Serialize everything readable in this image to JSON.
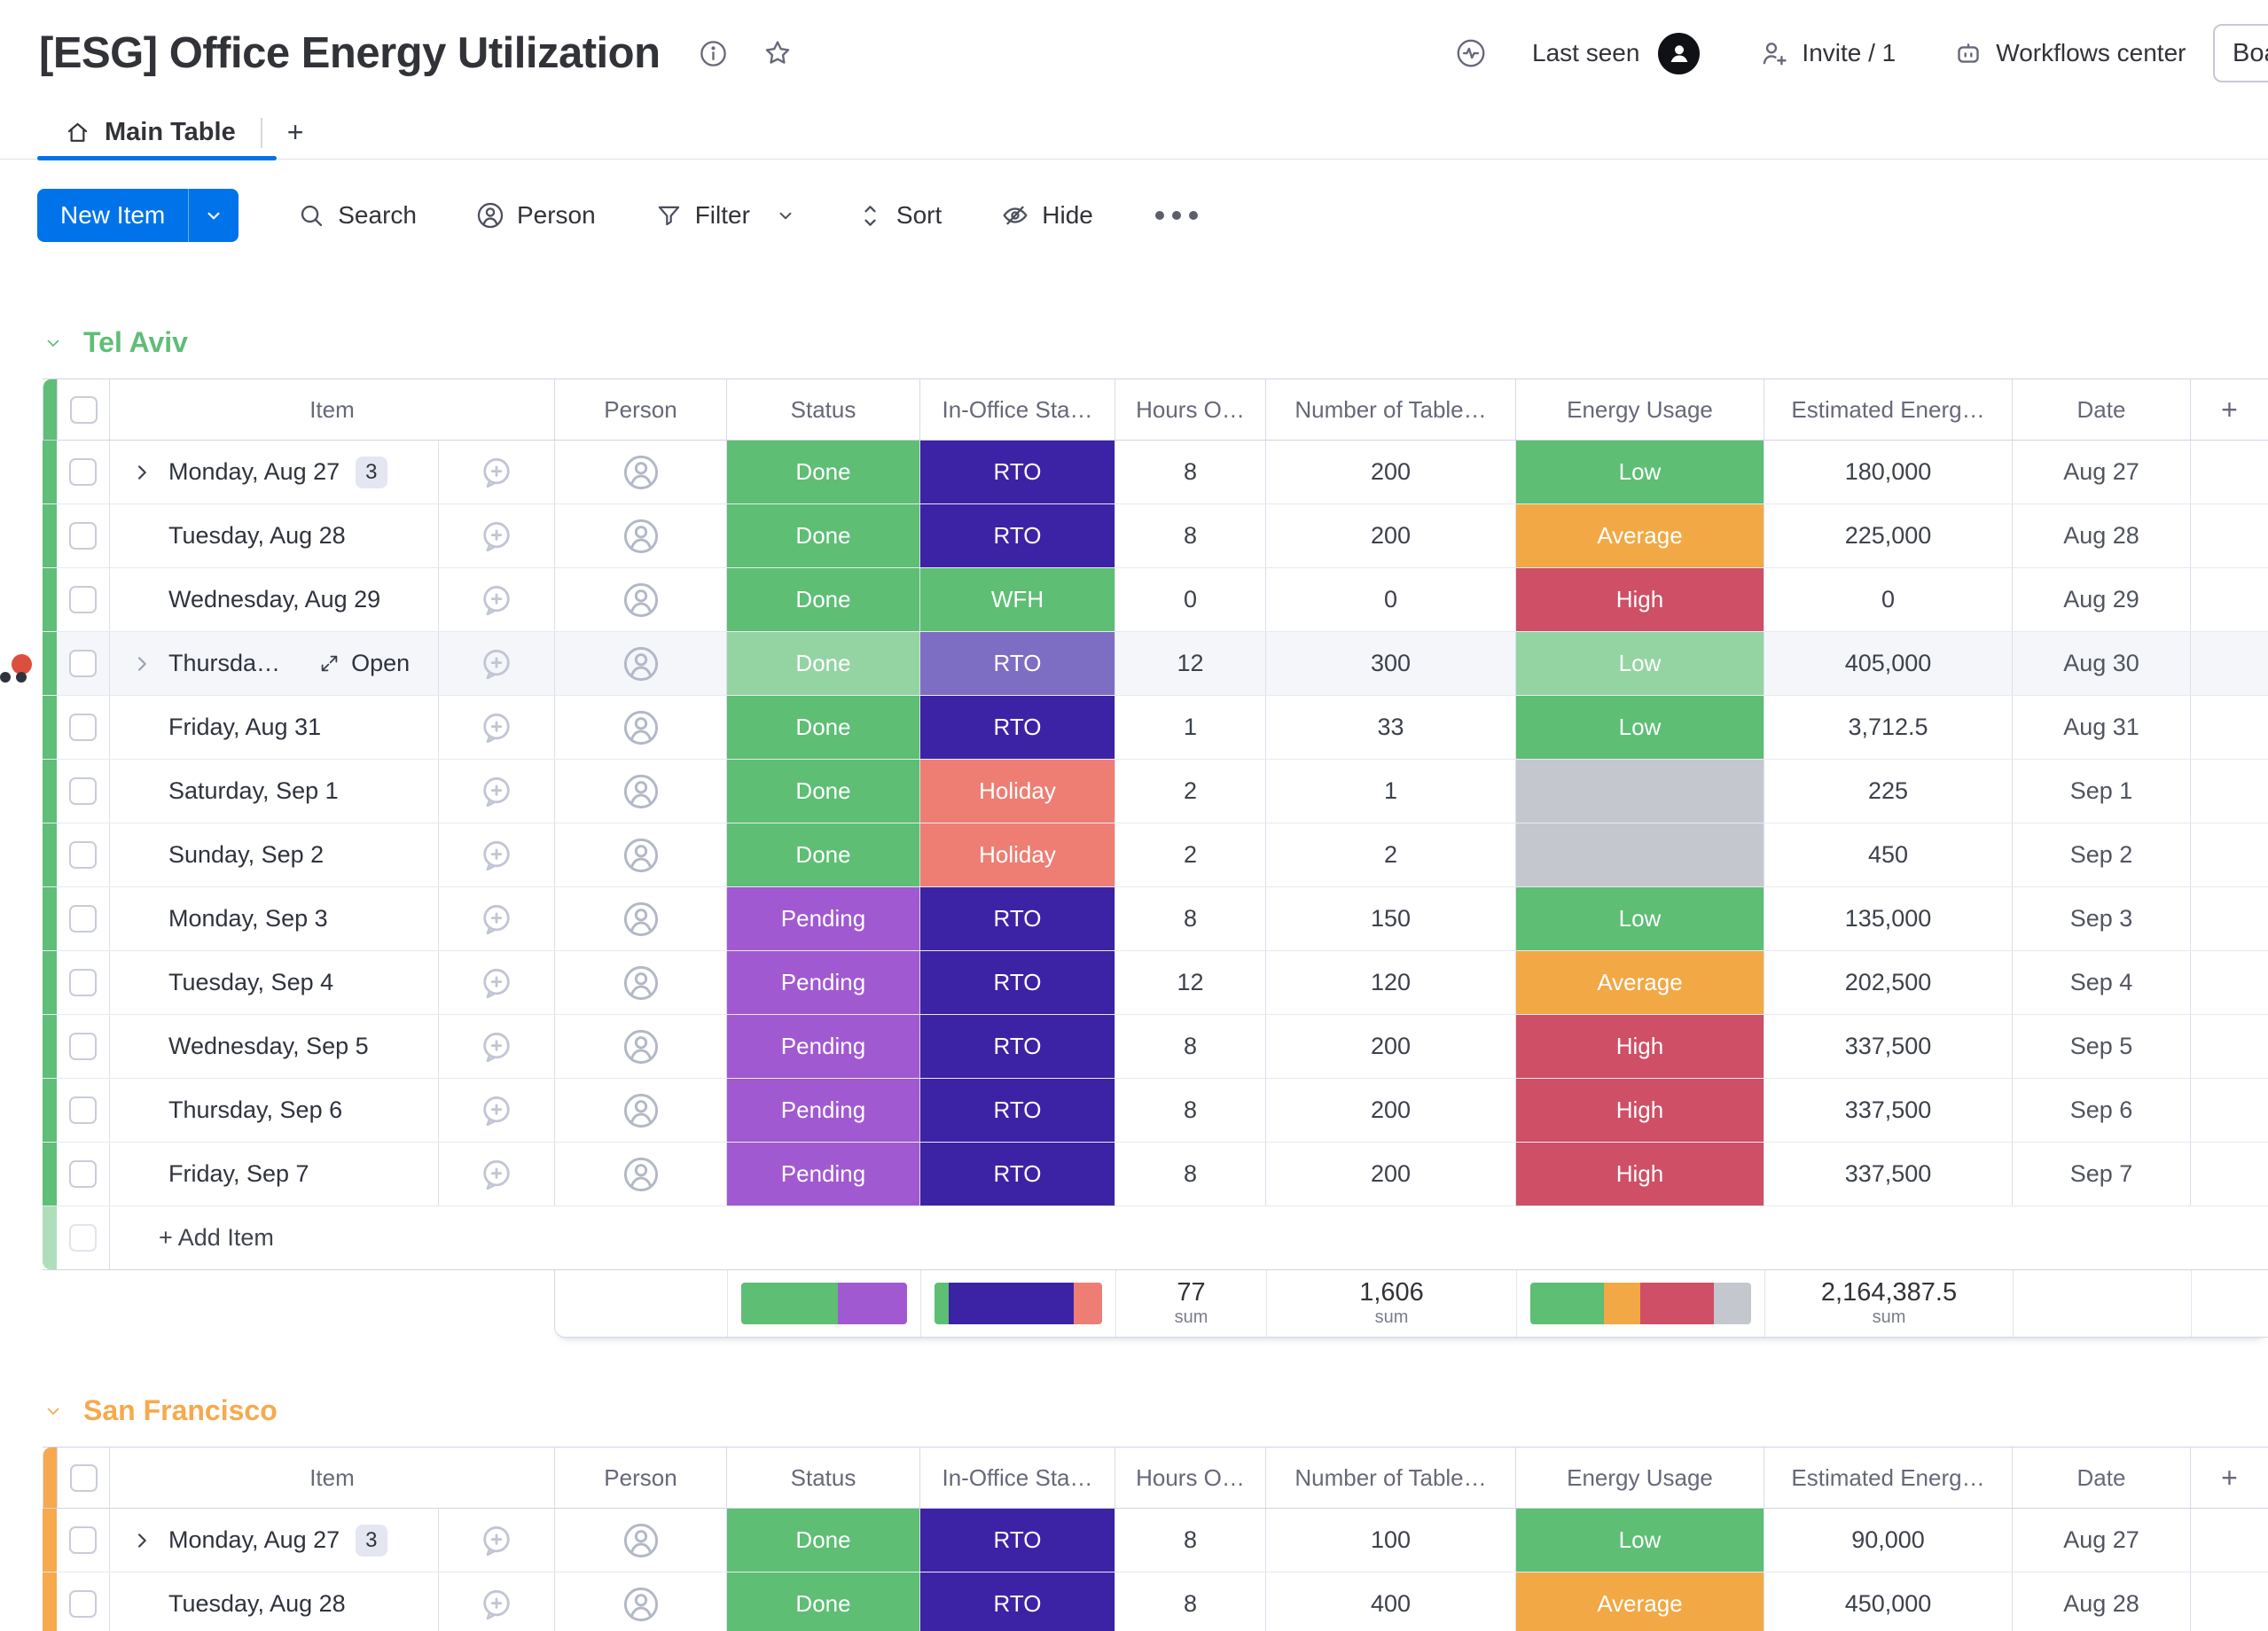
{
  "board": {
    "title": "[ESG] Office Energy Utilization"
  },
  "tabs": {
    "main_label": "Main Table",
    "add_label": "+"
  },
  "toolbar": {
    "new_item": "New Item",
    "search": "Search",
    "person": "Person",
    "filter": "Filter",
    "sort": "Sort",
    "hide": "Hide"
  },
  "top_right": {
    "last_seen": "Last seen",
    "invite": "Invite / 1",
    "workflows": "Workflows center",
    "board_button": "Boa"
  },
  "columns": {
    "item": "Item",
    "person": "Person",
    "status": "Status",
    "office": "In-Office Sta…",
    "hours": "Hours O…",
    "tables": "Number of Table…",
    "energy": "Energy Usage",
    "estimated": "Estimated Energ…",
    "date": "Date",
    "add": "+"
  },
  "colors": {
    "green": "#5dbe74",
    "darkpurple": "#3c23a5",
    "purple": "#a159d1",
    "salmon": "#ee7d73",
    "orange": "#f2a844",
    "red": "#ce4f66",
    "gray": "#c5c7ce",
    "accent_blue": "#0073ea",
    "group_green": "#5fbe77",
    "group_orange": "#f6a94d"
  },
  "groups": [
    {
      "name": "Tel Aviv",
      "accent": "#5fbe77",
      "add_item_label": "+ Add Item",
      "rows": [
        {
          "item": "Monday, Aug 27",
          "expand": true,
          "badge": "3",
          "status": "Done",
          "status_color": "green",
          "office": "RTO",
          "office_color": "darkpurple",
          "hours": "8",
          "tables": "200",
          "energy": "Low",
          "energy_color": "green",
          "estimated": "180,000",
          "date": "Aug 27"
        },
        {
          "item": "Tuesday, Aug 28",
          "status": "Done",
          "status_color": "green",
          "office": "RTO",
          "office_color": "darkpurple",
          "hours": "8",
          "tables": "200",
          "energy": "Average",
          "energy_color": "orange",
          "estimated": "225,000",
          "date": "Aug 28"
        },
        {
          "item": "Wednesday, Aug 29",
          "status": "Done",
          "status_color": "green",
          "office": "WFH",
          "office_color": "green",
          "hours": "0",
          "tables": "0",
          "energy": "High",
          "energy_color": "red",
          "estimated": "0",
          "date": "Aug 29"
        },
        {
          "item": "Thursda…",
          "expand": true,
          "hover": true,
          "open_label": "Open",
          "status": "Done",
          "status_color": "green",
          "office": "RTO",
          "office_color": "darkpurple",
          "hours": "12",
          "tables": "300",
          "energy": "Low",
          "energy_color": "green",
          "estimated": "405,000",
          "date": "Aug 30"
        },
        {
          "item": "Friday, Aug 31",
          "status": "Done",
          "status_color": "green",
          "office": "RTO",
          "office_color": "darkpurple",
          "hours": "1",
          "tables": "33",
          "energy": "Low",
          "energy_color": "green",
          "estimated": "3,712.5",
          "date": "Aug 31"
        },
        {
          "item": "Saturday, Sep 1",
          "status": "Done",
          "status_color": "green",
          "office": "Holiday",
          "office_color": "salmon",
          "hours": "2",
          "tables": "1",
          "energy": "",
          "energy_color": "gray",
          "estimated": "225",
          "date": "Sep 1"
        },
        {
          "item": "Sunday, Sep 2",
          "status": "Done",
          "status_color": "green",
          "office": "Holiday",
          "office_color": "salmon",
          "hours": "2",
          "tables": "2",
          "energy": "",
          "energy_color": "gray",
          "estimated": "450",
          "date": "Sep 2"
        },
        {
          "item": "Monday, Sep 3",
          "status": "Pending",
          "status_color": "purple",
          "office": "RTO",
          "office_color": "darkpurple",
          "hours": "8",
          "tables": "150",
          "energy": "Low",
          "energy_color": "green",
          "estimated": "135,000",
          "date": "Sep 3"
        },
        {
          "item": "Tuesday, Sep 4",
          "status": "Pending",
          "status_color": "purple",
          "office": "RTO",
          "office_color": "darkpurple",
          "hours": "12",
          "tables": "120",
          "energy": "Average",
          "energy_color": "orange",
          "estimated": "202,500",
          "date": "Sep 4"
        },
        {
          "item": "Wednesday, Sep 5",
          "status": "Pending",
          "status_color": "purple",
          "office": "RTO",
          "office_color": "darkpurple",
          "hours": "8",
          "tables": "200",
          "energy": "High",
          "energy_color": "red",
          "estimated": "337,500",
          "date": "Sep 5"
        },
        {
          "item": "Thursday, Sep 6",
          "status": "Pending",
          "status_color": "purple",
          "office": "RTO",
          "office_color": "darkpurple",
          "hours": "8",
          "tables": "200",
          "energy": "High",
          "energy_color": "red",
          "estimated": "337,500",
          "date": "Sep 6"
        },
        {
          "item": "Friday, Sep 7",
          "status": "Pending",
          "status_color": "purple",
          "office": "RTO",
          "office_color": "darkpurple",
          "hours": "8",
          "tables": "200",
          "energy": "High",
          "energy_color": "red",
          "estimated": "337,500",
          "date": "Sep 7"
        }
      ],
      "summary": {
        "status_bar": [
          {
            "color": "green",
            "pct": 58.3
          },
          {
            "color": "purple",
            "pct": 41.7
          }
        ],
        "office_bar": [
          {
            "color": "green",
            "pct": 8.3
          },
          {
            "color": "darkpurple",
            "pct": 75
          },
          {
            "color": "salmon",
            "pct": 16.7
          }
        ],
        "energy_bar": [
          {
            "color": "green",
            "pct": 33.3
          },
          {
            "color": "orange",
            "pct": 16.7
          },
          {
            "color": "red",
            "pct": 33.3
          },
          {
            "color": "gray",
            "pct": 16.7
          }
        ],
        "hours_sum": "77",
        "tables_sum": "1,606",
        "estimated_sum": "2,164,387.5",
        "sum_label": "sum"
      }
    },
    {
      "name": "San Francisco",
      "accent": "#f6a94d",
      "rows": [
        {
          "item": "Monday, Aug 27",
          "expand": true,
          "badge": "3",
          "status": "Done",
          "status_color": "green",
          "office": "RTO",
          "office_color": "darkpurple",
          "hours": "8",
          "tables": "100",
          "energy": "Low",
          "energy_color": "green",
          "estimated": "90,000",
          "date": "Aug 27"
        },
        {
          "item": "Tuesday, Aug 28",
          "status": "Done",
          "status_color": "green",
          "office": "RTO",
          "office_color": "darkpurple",
          "hours": "8",
          "tables": "400",
          "energy": "Average",
          "energy_color": "orange",
          "estimated": "450,000",
          "date": "Aug 28"
        }
      ]
    }
  ]
}
